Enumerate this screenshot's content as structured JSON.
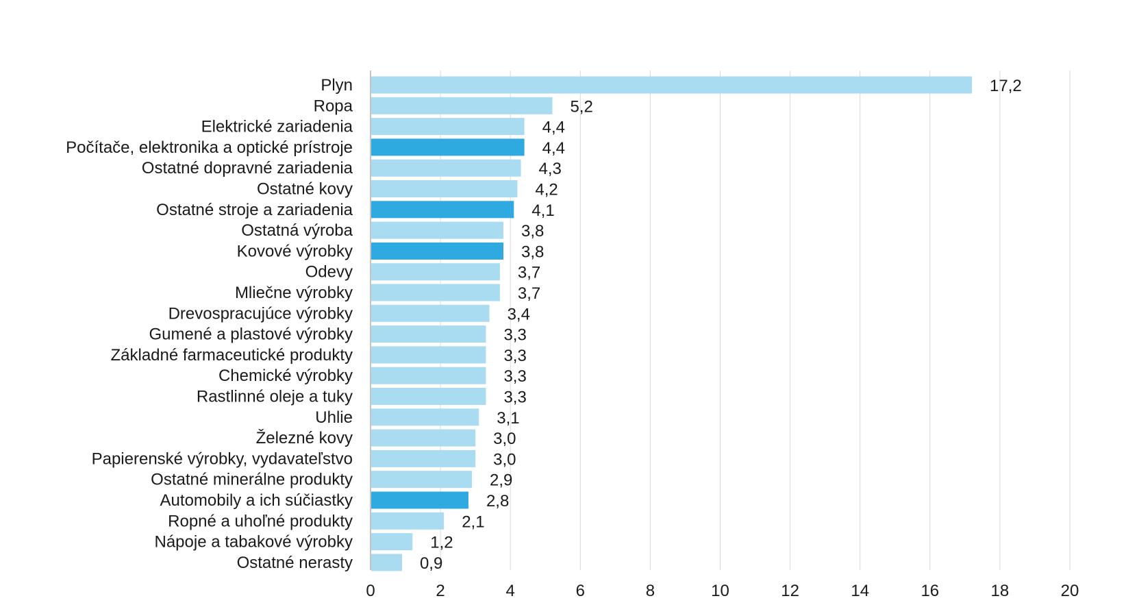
{
  "colors": {
    "bar_default": "#a9dbf1",
    "bar_highlight": "#2faae0",
    "gridline": "#d9d9d9",
    "text": "#1a1a1a"
  },
  "chart_data": {
    "type": "bar",
    "orientation": "horizontal",
    "title": "",
    "xlabel": "",
    "ylabel": "",
    "xlim": [
      0,
      20
    ],
    "xticks": [
      0,
      2,
      4,
      6,
      8,
      10,
      12,
      14,
      16,
      18,
      20
    ],
    "grid": "vertical",
    "legend": "none",
    "categories": [
      "Plyn",
      "Ropa",
      "Elektrické zariadenia",
      "Počítače, elektronika a optické prístroje",
      "Ostatné dopravné zariadenia",
      "Ostatné kovy",
      "Ostatné stroje a zariadenia",
      "Ostatná výroba",
      "Kovové výrobky",
      "Odevy",
      "Mliečne výrobky",
      "Drevospracujúce výrobky",
      "Gumené a plastové výrobky",
      "Základné farmaceutické produkty",
      "Chemické výrobky",
      "Rastlinné oleje a tuky",
      "Uhlie",
      "Železné kovy",
      "Papierenské výrobky, vydavateľstvo",
      "Ostatné minerálne produkty",
      "Automobily a ich súčiastky",
      "Ropné a uhoľné produkty",
      "Nápoje a tabakové výrobky",
      "Ostatné nerasty"
    ],
    "values": [
      17.2,
      5.2,
      4.4,
      4.4,
      4.3,
      4.2,
      4.1,
      3.8,
      3.8,
      3.7,
      3.7,
      3.4,
      3.3,
      3.3,
      3.3,
      3.3,
      3.1,
      3.0,
      3.0,
      2.9,
      2.8,
      2.1,
      1.2,
      0.9
    ],
    "value_labels": [
      "17,2",
      "5,2",
      "4,4",
      "4,4",
      "4,3",
      "4,2",
      "4,1",
      "3,8",
      "3,8",
      "3,7",
      "3,7",
      "3,4",
      "3,3",
      "3,3",
      "3,3",
      "3,3",
      "3,1",
      "3,0",
      "3,0",
      "2,9",
      "2,8",
      "2,1",
      "1,2",
      "0,9"
    ],
    "highlighted": [
      "Počítače, elektronika a optické prístroje",
      "Ostatné stroje a zariadenia",
      "Kovové výrobky",
      "Automobily a ich súčiastky"
    ]
  }
}
